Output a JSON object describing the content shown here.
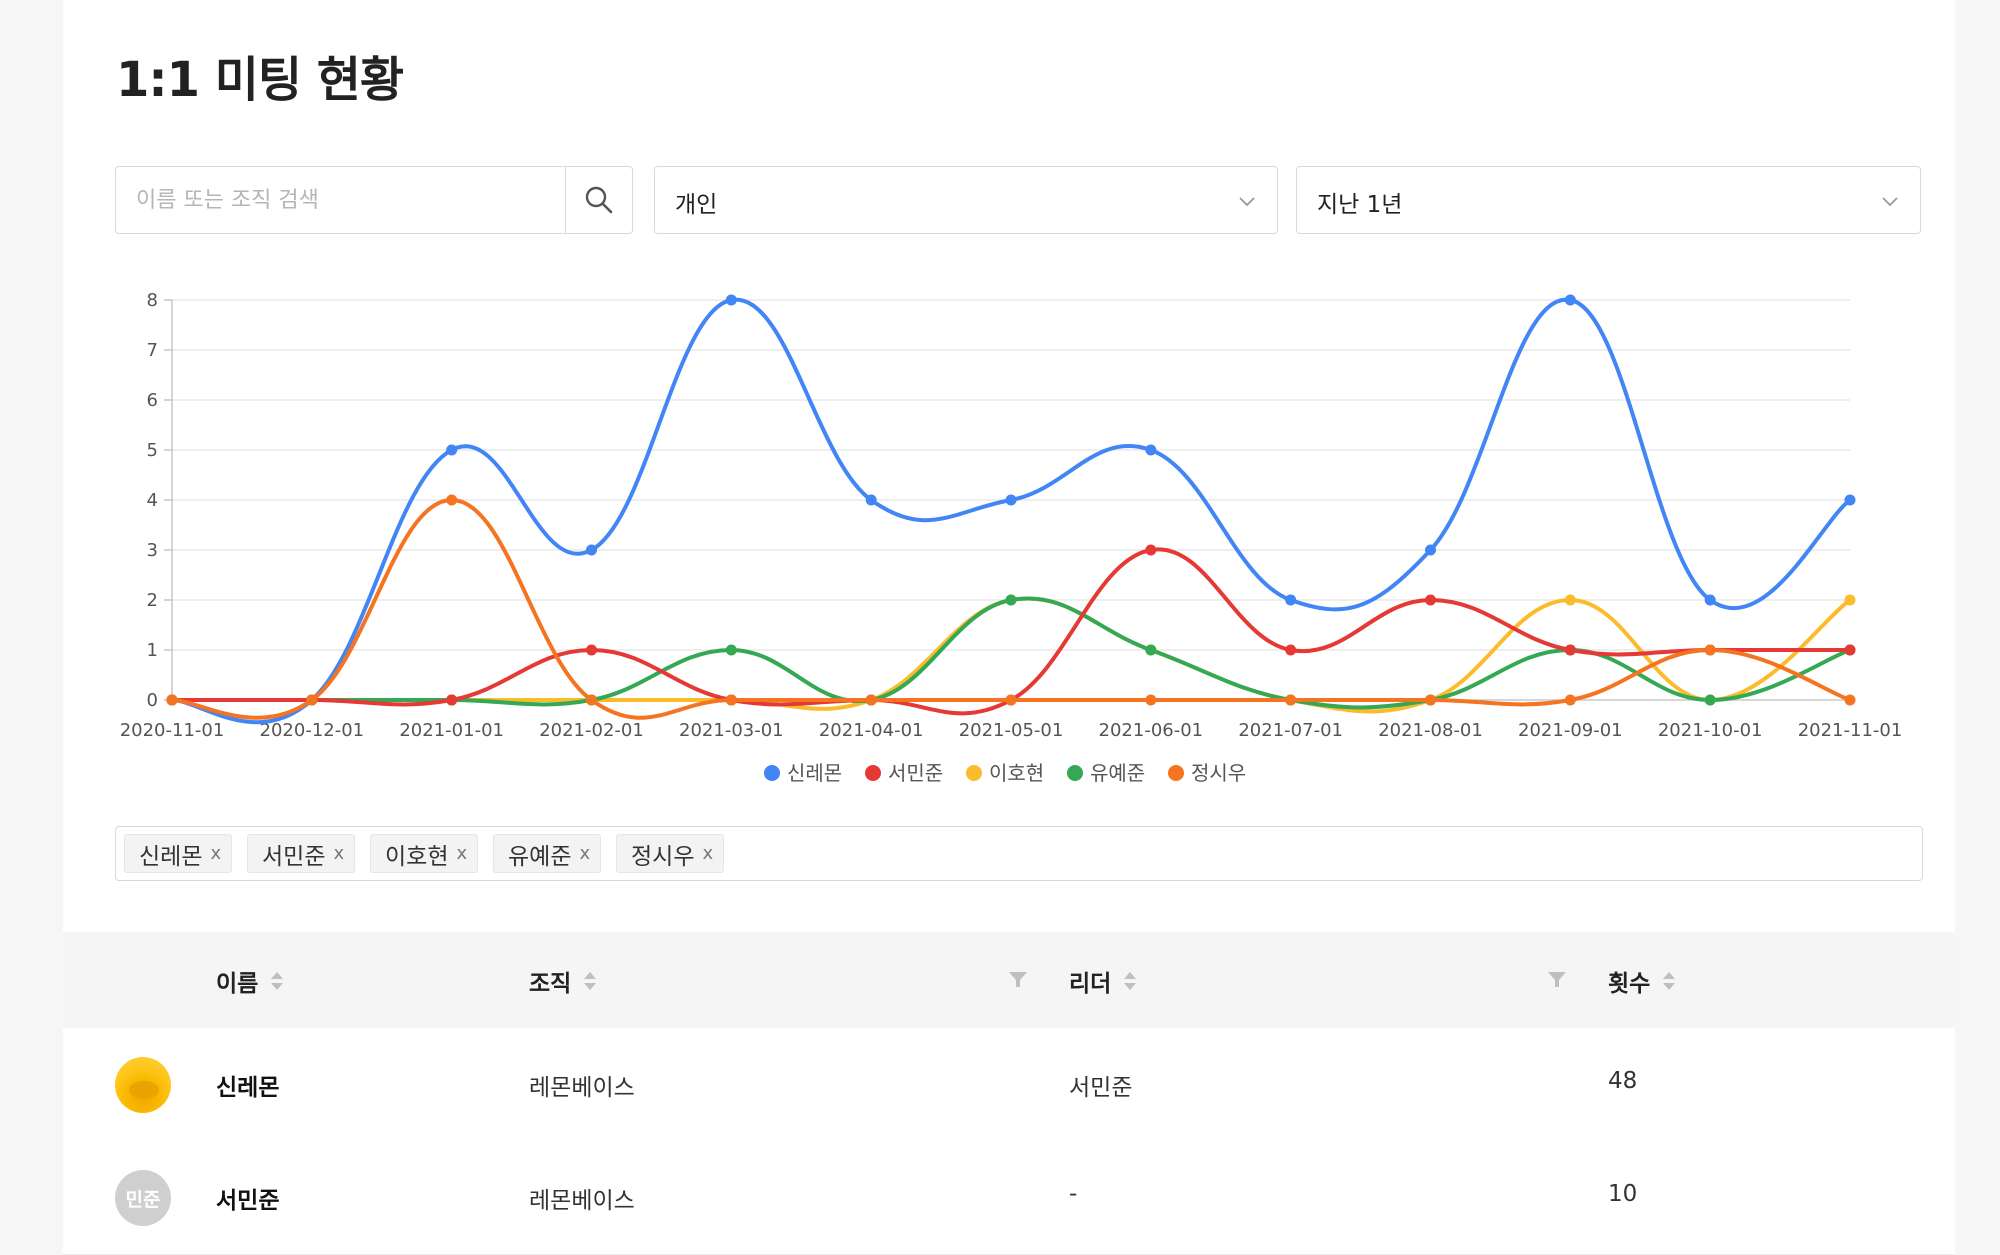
{
  "page_title": "1:1 미팅 현황",
  "search": {
    "placeholder": "이름 또는 조직 검색",
    "value": ""
  },
  "filters": {
    "type_value": "개인",
    "period_value": "지난 1년"
  },
  "chart_data": {
    "type": "line",
    "x": [
      "2020-11-01",
      "2020-12-01",
      "2021-01-01",
      "2021-02-01",
      "2021-03-01",
      "2021-04-01",
      "2021-05-01",
      "2021-06-01",
      "2021-07-01",
      "2021-08-01",
      "2021-09-01",
      "2021-10-01",
      "2021-11-01"
    ],
    "y_ticks": [
      0,
      1,
      2,
      3,
      4,
      5,
      6,
      7,
      8
    ],
    "ylim": [
      0,
      8
    ],
    "grid": true,
    "legend_position": "bottom",
    "series": [
      {
        "name": "신레몬",
        "color": "#4285f4",
        "values": [
          0,
          0,
          5,
          3,
          8,
          4,
          4,
          5,
          2,
          3,
          8,
          2,
          4
        ]
      },
      {
        "name": "서민준",
        "color": "#e53935",
        "values": [
          0,
          0,
          0,
          1,
          0,
          0,
          0,
          3,
          1,
          2,
          1,
          1,
          1
        ]
      },
      {
        "name": "이호현",
        "color": "#fbbc2c",
        "values": [
          0,
          0,
          0,
          0,
          0,
          0,
          2,
          1,
          0,
          0,
          2,
          0,
          2
        ]
      },
      {
        "name": "유예준",
        "color": "#34a853",
        "values": [
          0,
          0,
          0,
          0,
          1,
          0,
          2,
          1,
          0,
          0,
          1,
          0,
          1
        ]
      },
      {
        "name": "정시우",
        "color": "#f47421",
        "values": [
          0,
          0,
          4,
          0,
          0,
          0,
          0,
          0,
          0,
          0,
          0,
          1,
          0
        ]
      }
    ]
  },
  "selected_tags": [
    "신레몬",
    "서민준",
    "이호현",
    "유예준",
    "정시우"
  ],
  "tag_close": "x",
  "table": {
    "columns": {
      "name": "이름",
      "org": "조직",
      "leader": "리더",
      "count": "횟수"
    },
    "rows": [
      {
        "avatar_type": "image",
        "avatar_text": "",
        "name": "신레몬",
        "org": "레몬베이스",
        "leader": "서민준",
        "count": "48"
      },
      {
        "avatar_type": "text",
        "avatar_text": "민준",
        "name": "서민준",
        "org": "레몬베이스",
        "leader": "-",
        "count": "10"
      }
    ]
  }
}
